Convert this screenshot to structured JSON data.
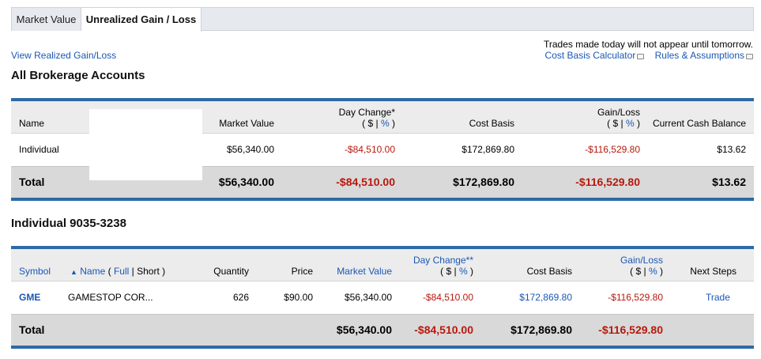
{
  "tabs": [
    "Market Value",
    "Unrealized Gain / Loss"
  ],
  "top": {
    "notice": "Trades made today will not appear until tomorrow.",
    "realized_link": "View Realized Gain/Loss",
    "calc_link": "Cost Basis Calculator",
    "rules_link": "Rules & Assumptions"
  },
  "accounts": {
    "title": "All Brokerage Accounts",
    "headers": {
      "name": "Name",
      "market_value": "Market Value",
      "day_change": "Day Change*",
      "day_change_sub_a": "( $ |",
      "day_change_sub_pct": "%",
      "day_change_sub_b": ")",
      "cost_basis": "Cost Basis",
      "gain_loss": "Gain/Loss",
      "gain_loss_sub_a": "( $ |",
      "gain_loss_sub_pct": "%",
      "gain_loss_sub_b": ")",
      "cash": "Current Cash Balance"
    },
    "row": {
      "name": "Individual",
      "market_value": "$56,340.00",
      "day_change": "-$84,510.00",
      "cost_basis": "$172,869.80",
      "gain_loss": "-$116,529.80",
      "cash": "$13.62"
    },
    "total": {
      "label": "Total",
      "market_value": "$56,340.00",
      "day_change": "-$84,510.00",
      "cost_basis": "$172,869.80",
      "gain_loss": "-$116,529.80",
      "cash": "$13.62"
    }
  },
  "individual": {
    "title": "Individual 9035-3238",
    "headers": {
      "symbol": "Symbol",
      "sort_arrow": "▲",
      "name": "Name",
      "name_open": "(",
      "full": "Full",
      "pipe": "|",
      "short": "Short )",
      "quantity": "Quantity",
      "price": "Price",
      "market_value": "Market Value",
      "day_change": "Day Change**",
      "day_change_sub_a": "( $ |",
      "day_change_sub_pct": "%",
      "day_change_sub_b": ")",
      "cost_basis": "Cost Basis",
      "gain_loss": "Gain/Loss",
      "gain_loss_sub_a": "( $ |",
      "gain_loss_sub_pct": "%",
      "gain_loss_sub_b": ")",
      "next_steps": "Next Steps"
    },
    "row": {
      "symbol": "GME",
      "name": "GAMESTOP COR...",
      "quantity": "626",
      "price": "$90.00",
      "market_value": "$56,340.00",
      "day_change": "-$84,510.00",
      "cost_basis": "$172,869.80",
      "gain_loss": "-$116,529.80",
      "action": "Trade"
    },
    "total": {
      "label": "Total",
      "market_value": "$56,340.00",
      "day_change": "-$84,510.00",
      "cost_basis": "$172,869.80",
      "gain_loss": "-$116,529.80"
    }
  },
  "colors": {
    "link": "#1a57b5",
    "negative": "#b8180d",
    "accent_bar": "#2e6aa7"
  },
  "icons": [
    "speech-bubble-icon",
    "sort-up-arrow-icon"
  ]
}
